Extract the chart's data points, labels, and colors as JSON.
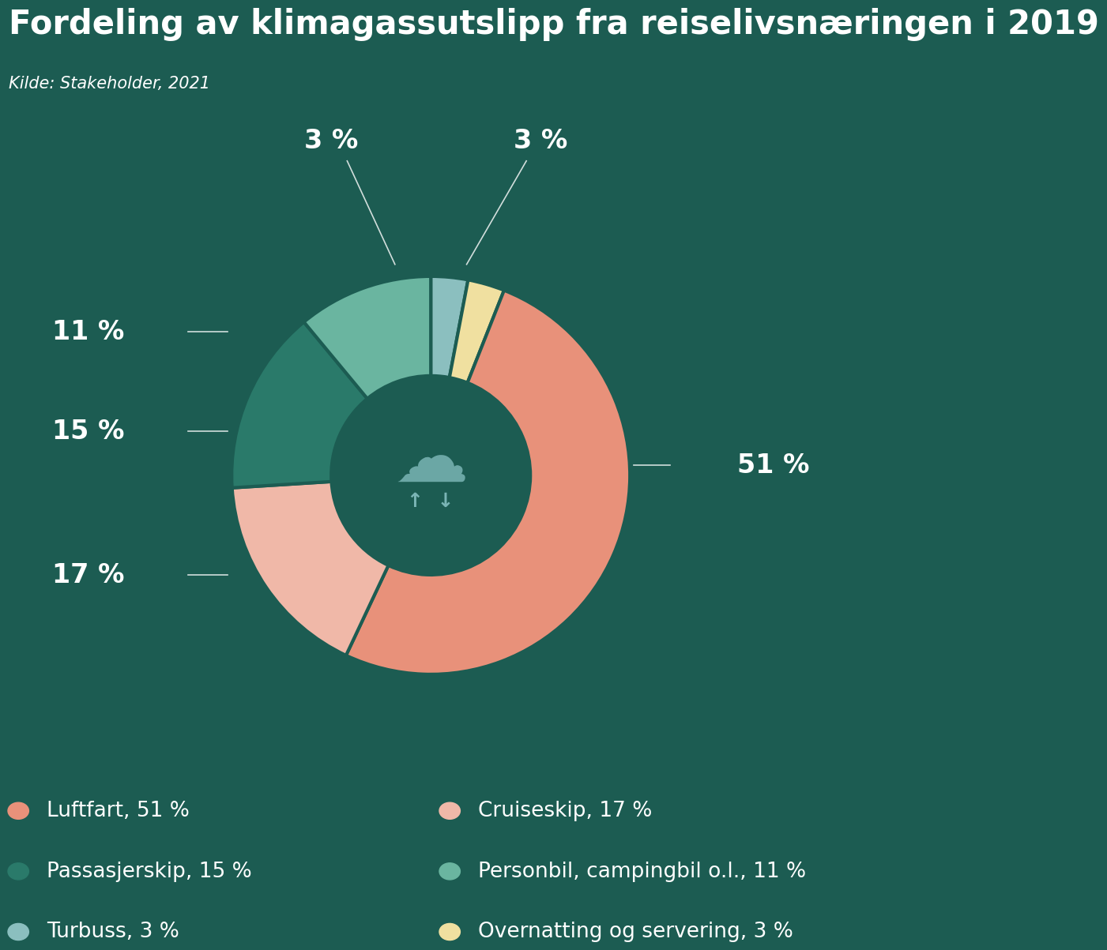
{
  "title": "Fordeling av klimagassutslipp fra reiselivsnæringen i 2019",
  "source": "Kilde: Stakeholder, 2021",
  "background_color": "#1c5c52",
  "text_color": "#ffffff",
  "pie_order": [
    {
      "label": "Turbuss, 3 %",
      "value": 3,
      "color": "#8bbfbf"
    },
    {
      "label": "Overnatting og servering, 3 %",
      "value": 3,
      "color": "#f0e0a0"
    },
    {
      "label": "Luftfart, 51 %",
      "value": 51,
      "color": "#e8917a"
    },
    {
      "label": "Cruiseskip, 17 %",
      "value": 17,
      "color": "#f0b8a8"
    },
    {
      "label": "Passasjerskip, 15 %",
      "value": 15,
      "color": "#2a7a6a"
    },
    {
      "label": "Personbil, campingbil o.l., 11 %",
      "value": 11,
      "color": "#6ab5a0"
    }
  ],
  "legend_order": [
    {
      "label": "Luftfart, 51 %",
      "color": "#e8917a"
    },
    {
      "label": "Passasjerskip, 15 %",
      "color": "#2a7a6a"
    },
    {
      "label": "Turbuss, 3 %",
      "color": "#8bbfbf"
    },
    {
      "label": "Cruiseskip, 17 %",
      "color": "#f0b8a8"
    },
    {
      "label": "Personbil, campingbil o.l., 11 %",
      "color": "#6ab5a0"
    },
    {
      "label": "Overnatting og servering, 3 %",
      "color": "#f0e0a0"
    }
  ],
  "donut_center_color": "#1c5c52",
  "title_fontsize": 30,
  "source_fontsize": 15,
  "pct_fontsize": 24,
  "legend_fontsize": 19
}
